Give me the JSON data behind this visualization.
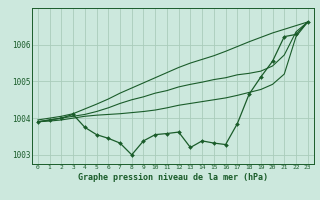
{
  "background_color": "#cce8dd",
  "grid_color": "#aaccbb",
  "line_color": "#1a5c2a",
  "x": [
    0,
    1,
    2,
    3,
    4,
    5,
    6,
    7,
    8,
    9,
    10,
    11,
    12,
    13,
    14,
    15,
    16,
    17,
    18,
    19,
    20,
    21,
    22,
    23
  ],
  "line_main": [
    1003.9,
    1003.95,
    1004.0,
    1004.1,
    1003.75,
    1003.55,
    1003.45,
    1003.32,
    1003.0,
    1003.38,
    1003.55,
    1003.58,
    1003.62,
    1003.2,
    1003.38,
    1003.32,
    1003.28,
    1003.85,
    1004.65,
    1005.12,
    1005.55,
    1006.22,
    1006.28,
    1006.62
  ],
  "line_max": [
    1003.95,
    1004.0,
    1004.05,
    1004.12,
    1004.25,
    1004.38,
    1004.52,
    1004.68,
    1004.82,
    1004.96,
    1005.1,
    1005.24,
    1005.38,
    1005.5,
    1005.6,
    1005.7,
    1005.82,
    1005.95,
    1006.08,
    1006.2,
    1006.32,
    1006.42,
    1006.52,
    1006.62
  ],
  "line_min": [
    1003.9,
    1003.92,
    1003.95,
    1004.0,
    1004.05,
    1004.08,
    1004.1,
    1004.12,
    1004.15,
    1004.18,
    1004.22,
    1004.28,
    1004.35,
    1004.4,
    1004.45,
    1004.5,
    1004.55,
    1004.62,
    1004.7,
    1004.78,
    1004.92,
    1005.2,
    1006.22,
    1006.62
  ],
  "line_avg": [
    1003.9,
    1003.95,
    1004.0,
    1004.05,
    1004.1,
    1004.18,
    1004.28,
    1004.4,
    1004.5,
    1004.58,
    1004.68,
    1004.75,
    1004.85,
    1004.92,
    1004.98,
    1005.05,
    1005.1,
    1005.18,
    1005.22,
    1005.28,
    1005.42,
    1005.72,
    1006.35,
    1006.62
  ],
  "ylim": [
    1002.75,
    1007.0
  ],
  "yticks": [
    1003,
    1004,
    1005,
    1006
  ],
  "xlim": [
    -0.5,
    23.5
  ],
  "xticks": [
    0,
    1,
    2,
    3,
    4,
    5,
    6,
    7,
    8,
    9,
    10,
    11,
    12,
    13,
    14,
    15,
    16,
    17,
    18,
    19,
    20,
    21,
    22,
    23
  ]
}
